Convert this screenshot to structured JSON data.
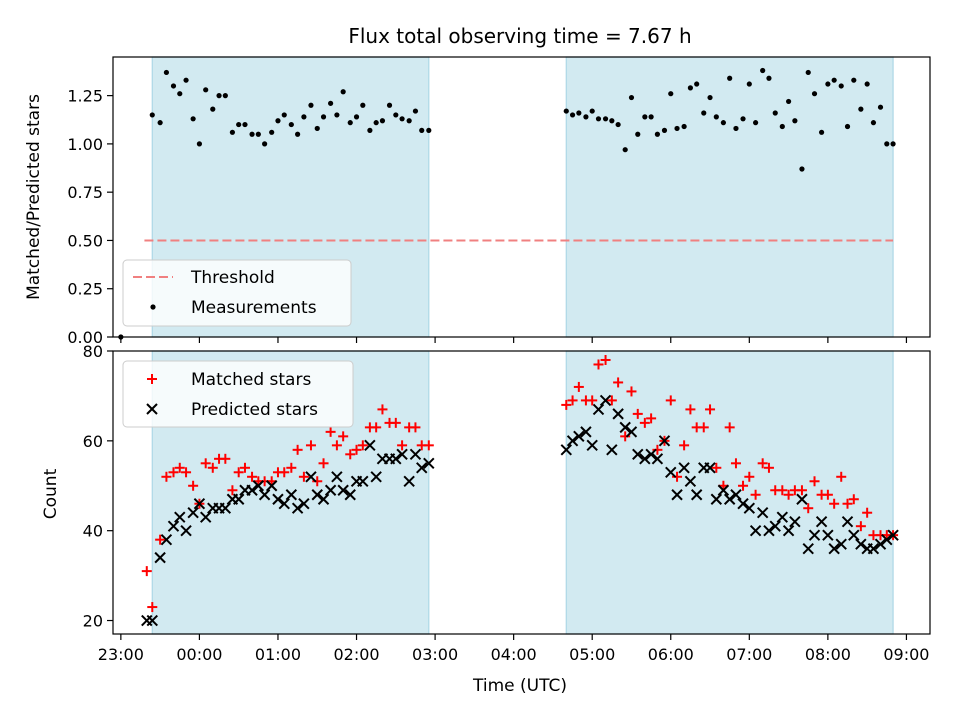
{
  "chart_data": [
    {
      "type": "scatter",
      "title": "Flux total observing time = 7.67 h",
      "xlabel": "",
      "ylabel": "Matched/Predicted stars",
      "ylim": [
        0,
        1.45
      ],
      "xlim_hours": [
        -1.1,
        9.3
      ],
      "yticks": [
        0.0,
        0.25,
        0.5,
        0.75,
        1.0,
        1.25
      ],
      "ytick_labels": [
        "0.00",
        "0.25",
        "0.50",
        "0.75",
        "1.00",
        "1.25"
      ],
      "shaded_intervals_hours": [
        [
          -0.6,
          2.92
        ],
        [
          4.67,
          8.83
        ]
      ],
      "threshold": {
        "name": "Threshold",
        "value": 0.5,
        "x_range_hours": [
          -0.7,
          8.83
        ],
        "color": "#f08080"
      },
      "series": [
        {
          "name": "Measurements",
          "color": "#000000",
          "x": [
            -1.0,
            -0.6,
            -0.5,
            -0.42,
            -0.33,
            -0.25,
            -0.17,
            -0.08,
            0.0,
            0.08,
            0.17,
            0.25,
            0.33,
            0.42,
            0.5,
            0.58,
            0.67,
            0.75,
            0.83,
            0.92,
            1.0,
            1.08,
            1.17,
            1.25,
            1.33,
            1.42,
            1.5,
            1.58,
            1.67,
            1.75,
            1.83,
            1.92,
            2.0,
            2.08,
            2.17,
            2.25,
            2.33,
            2.42,
            2.5,
            2.58,
            2.67,
            2.75,
            2.83,
            2.92,
            4.67,
            4.75,
            4.83,
            4.92,
            5.0,
            5.08,
            5.17,
            5.25,
            5.33,
            5.42,
            5.5,
            5.58,
            5.67,
            5.75,
            5.83,
            5.92,
            6.0,
            6.08,
            6.17,
            6.25,
            6.33,
            6.42,
            6.5,
            6.58,
            6.67,
            6.75,
            6.83,
            6.92,
            7.0,
            7.08,
            7.17,
            7.25,
            7.33,
            7.42,
            7.5,
            7.58,
            7.67,
            7.75,
            7.83,
            7.92,
            8.0,
            8.08,
            8.17,
            8.25,
            8.33,
            8.42,
            8.5,
            8.58,
            8.67,
            8.75,
            8.83
          ],
          "y": [
            0.0,
            1.15,
            1.11,
            1.37,
            1.3,
            1.26,
            1.33,
            1.13,
            1.0,
            1.28,
            1.18,
            1.25,
            1.25,
            1.06,
            1.1,
            1.1,
            1.05,
            1.05,
            1.0,
            1.06,
            1.12,
            1.15,
            1.1,
            1.05,
            1.14,
            1.2,
            1.08,
            1.14,
            1.21,
            1.15,
            1.27,
            1.11,
            1.14,
            1.2,
            1.07,
            1.11,
            1.12,
            1.2,
            1.15,
            1.13,
            1.12,
            1.17,
            1.07,
            1.07,
            1.17,
            1.15,
            1.16,
            1.14,
            1.17,
            1.13,
            1.13,
            1.12,
            1.1,
            0.97,
            1.24,
            1.05,
            1.14,
            1.14,
            1.05,
            1.07,
            1.26,
            1.08,
            1.09,
            1.29,
            1.31,
            1.16,
            1.24,
            1.14,
            1.11,
            1.34,
            1.08,
            1.13,
            1.31,
            1.11,
            1.38,
            1.34,
            1.16,
            1.09,
            1.22,
            1.12,
            0.87,
            1.37,
            1.26,
            1.06,
            1.31,
            1.33,
            1.3,
            1.09,
            1.33,
            1.18,
            1.31,
            1.11,
            1.19,
            1.0,
            1.0
          ]
        }
      ],
      "legend": [
        {
          "label": "Threshold",
          "marker": "dashed-line"
        },
        {
          "label": "Measurements",
          "marker": "dot"
        }
      ],
      "legend_position": "lower-left"
    },
    {
      "type": "scatter",
      "title": "",
      "xlabel": "Time (UTC)",
      "ylabel": "Count",
      "ylim": [
        17,
        80
      ],
      "xlim_hours": [
        -1.1,
        9.3
      ],
      "yticks": [
        20,
        40,
        60,
        80
      ],
      "ytick_labels": [
        "20",
        "40",
        "60",
        "80"
      ],
      "xticks_hours": [
        -1,
        0,
        1,
        2,
        3,
        4,
        5,
        6,
        7,
        8,
        9
      ],
      "xtick_labels": [
        "23:00",
        "00:00",
        "01:00",
        "02:00",
        "03:00",
        "04:00",
        "05:00",
        "06:00",
        "07:00",
        "08:00",
        "09:00"
      ],
      "shaded_intervals_hours": [
        [
          -0.6,
          2.92
        ],
        [
          4.67,
          8.83
        ]
      ],
      "series": [
        {
          "name": "Matched stars",
          "marker": "plus",
          "color": "#ff0000",
          "x": [
            -0.67,
            -0.6,
            -0.5,
            -0.42,
            -0.33,
            -0.25,
            -0.17,
            -0.08,
            0.0,
            0.08,
            0.17,
            0.25,
            0.33,
            0.42,
            0.5,
            0.58,
            0.67,
            0.75,
            0.83,
            0.92,
            1.0,
            1.08,
            1.17,
            1.25,
            1.33,
            1.42,
            1.5,
            1.58,
            1.67,
            1.75,
            1.83,
            1.92,
            2.0,
            2.08,
            2.17,
            2.25,
            2.33,
            2.42,
            2.5,
            2.58,
            2.67,
            2.75,
            2.83,
            2.92,
            4.67,
            4.75,
            4.83,
            4.92,
            5.0,
            5.08,
            5.17,
            5.25,
            5.33,
            5.42,
            5.5,
            5.58,
            5.67,
            5.75,
            5.83,
            5.92,
            6.0,
            6.08,
            6.17,
            6.25,
            6.33,
            6.42,
            6.5,
            6.58,
            6.67,
            6.75,
            6.83,
            6.92,
            7.0,
            7.08,
            7.17,
            7.25,
            7.33,
            7.42,
            7.5,
            7.58,
            7.67,
            7.75,
            7.83,
            7.92,
            8.0,
            8.08,
            8.17,
            8.25,
            8.33,
            8.42,
            8.5,
            8.58,
            8.67,
            8.75,
            8.83
          ],
          "y": [
            31,
            23,
            38,
            52,
            53,
            54,
            53,
            50,
            46,
            55,
            54,
            56,
            56,
            49,
            53,
            54,
            52,
            51,
            51,
            51,
            53,
            53,
            54,
            58,
            52,
            59,
            51,
            55,
            62,
            59,
            61,
            57,
            58,
            59,
            63,
            63,
            67,
            64,
            64,
            59,
            63,
            63,
            59,
            59,
            68,
            69,
            72,
            69,
            69,
            77,
            78,
            69,
            73,
            61,
            71,
            66,
            64,
            65,
            58,
            60,
            69,
            52,
            59,
            67,
            63,
            63,
            67,
            54,
            50,
            63,
            55,
            50,
            52,
            48,
            55,
            54,
            49,
            49,
            48,
            49,
            49,
            45,
            51,
            48,
            48,
            46,
            52,
            46,
            47,
            41,
            44,
            39,
            39,
            39,
            39
          ]
        },
        {
          "name": "Predicted stars",
          "marker": "x",
          "color": "#000000",
          "x": [
            -0.67,
            -0.6,
            -0.5,
            -0.42,
            -0.33,
            -0.25,
            -0.17,
            -0.08,
            0.0,
            0.08,
            0.17,
            0.25,
            0.33,
            0.42,
            0.5,
            0.58,
            0.67,
            0.75,
            0.83,
            0.92,
            1.0,
            1.08,
            1.17,
            1.25,
            1.33,
            1.42,
            1.5,
            1.58,
            1.67,
            1.75,
            1.83,
            1.92,
            2.0,
            2.08,
            2.17,
            2.25,
            2.33,
            2.42,
            2.5,
            2.58,
            2.67,
            2.75,
            2.83,
            2.92,
            4.67,
            4.75,
            4.83,
            4.92,
            5.0,
            5.08,
            5.17,
            5.25,
            5.33,
            5.42,
            5.5,
            5.58,
            5.67,
            5.75,
            5.83,
            5.92,
            6.0,
            6.08,
            6.17,
            6.25,
            6.33,
            6.42,
            6.5,
            6.58,
            6.67,
            6.75,
            6.83,
            6.92,
            7.0,
            7.08,
            7.17,
            7.25,
            7.33,
            7.42,
            7.5,
            7.58,
            7.67,
            7.75,
            7.83,
            7.92,
            8.0,
            8.08,
            8.17,
            8.25,
            8.33,
            8.42,
            8.5,
            8.58,
            8.67,
            8.75,
            8.83
          ],
          "y": [
            20,
            20,
            34,
            38,
            41,
            43,
            40,
            44,
            46,
            43,
            45,
            45,
            45,
            47,
            47,
            49,
            49,
            50,
            48,
            50,
            47,
            46,
            48,
            45,
            46,
            52,
            48,
            47,
            49,
            52,
            49,
            48,
            51,
            51,
            59,
            52,
            56,
            56,
            56,
            57,
            51,
            57,
            54,
            55,
            58,
            60,
            61,
            62,
            59,
            67,
            69,
            58,
            66,
            63,
            62,
            57,
            56,
            57,
            56,
            60,
            53,
            48,
            54,
            51,
            48,
            54,
            54,
            47,
            49,
            47,
            48,
            46,
            45,
            40,
            44,
            40,
            41,
            43,
            40,
            42,
            47,
            36,
            39,
            42,
            39,
            36,
            37,
            42,
            39,
            37,
            36,
            36,
            37,
            38,
            39
          ]
        }
      ],
      "legend": [
        {
          "label": "Matched stars",
          "marker": "plus"
        },
        {
          "label": "Predicted stars",
          "marker": "x"
        }
      ],
      "legend_position": "upper-left"
    }
  ],
  "colors": {
    "shade": "#add8e6",
    "threshold": "#f08080",
    "matched": "#ff0000",
    "predicted": "#000000"
  }
}
